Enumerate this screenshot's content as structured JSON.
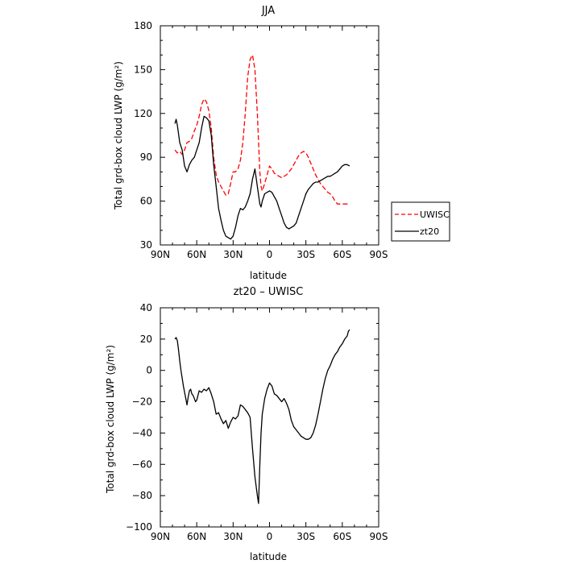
{
  "chart_data": [
    {
      "type": "line",
      "title": "JJA",
      "xlabel": "latitude",
      "ylabel": "Total grd-box cloud LWP (g/m²)",
      "xlim": [
        90,
        -90
      ],
      "ylim": [
        30,
        180
      ],
      "x_ticks": [
        90,
        60,
        30,
        0,
        -30,
        -60,
        -90
      ],
      "x_tick_labels": [
        "90N",
        "60N",
        "30N",
        "0",
        "30S",
        "60S",
        "90S"
      ],
      "y_ticks": [
        30,
        60,
        90,
        120,
        150,
        180
      ],
      "y_tick_labels": [
        "30",
        "60",
        "90",
        "120",
        "150",
        "180"
      ],
      "legend": "right",
      "series": [
        {
          "name": "UWISC",
          "color": "#ff0000",
          "dash": "dashed",
          "x": [
            78,
            76,
            74,
            72,
            70,
            68,
            66,
            64,
            62,
            60,
            58,
            56,
            54,
            52,
            50,
            48,
            46,
            44,
            42,
            40,
            38,
            36,
            34,
            32,
            30,
            28,
            26,
            24,
            22,
            20,
            18,
            16,
            14,
            12,
            10,
            8,
            7,
            6,
            4,
            2,
            0,
            -2,
            -4,
            -6,
            -8,
            -10,
            -12,
            -14,
            -16,
            -18,
            -20,
            -22,
            -24,
            -26,
            -28,
            -30,
            -32,
            -34,
            -36,
            -38,
            -40,
            -42,
            -44,
            -46,
            -48,
            -50,
            -52,
            -54,
            -56,
            -58,
            -60,
            -62,
            -64,
            -66
          ],
          "y": [
            95,
            93,
            94,
            92,
            95,
            100,
            101,
            103,
            108,
            112,
            118,
            126,
            130,
            128,
            122,
            110,
            90,
            78,
            73,
            70,
            67,
            64,
            65,
            72,
            80,
            80,
            82,
            88,
            100,
            120,
            145,
            157,
            160,
            150,
            120,
            80,
            70,
            67,
            72,
            78,
            84,
            82,
            79,
            78,
            77,
            76,
            77,
            78,
            80,
            82,
            85,
            88,
            91,
            93,
            94,
            93,
            90,
            86,
            82,
            78,
            75,
            72,
            70,
            68,
            66,
            65,
            63,
            60,
            58,
            58,
            58,
            58,
            58,
            58
          ]
        },
        {
          "name": "zt20",
          "color": "#000000",
          "dash": "solid",
          "x": [
            78,
            77,
            76,
            74,
            72,
            70,
            68,
            66,
            64,
            62,
            60,
            58,
            56,
            54,
            52,
            50,
            48,
            46,
            44,
            42,
            40,
            38,
            36,
            34,
            32,
            30,
            28,
            26,
            24,
            22,
            20,
            18,
            16,
            14,
            12,
            10,
            8,
            7,
            6,
            4,
            2,
            0,
            -2,
            -4,
            -6,
            -8,
            -10,
            -12,
            -14,
            -16,
            -18,
            -20,
            -22,
            -24,
            -26,
            -28,
            -30,
            -32,
            -34,
            -36,
            -38,
            -40,
            -42,
            -44,
            -46,
            -48,
            -50,
            -52,
            -54,
            -56,
            -58,
            -60,
            -62,
            -64,
            -66
          ],
          "y": [
            113,
            116,
            112,
            100,
            95,
            84,
            80,
            85,
            88,
            90,
            95,
            100,
            110,
            118,
            117,
            115,
            105,
            85,
            70,
            55,
            47,
            40,
            36,
            35,
            34,
            36,
            42,
            50,
            55,
            54,
            56,
            60,
            65,
            75,
            82,
            70,
            58,
            56,
            60,
            65,
            66,
            67,
            66,
            63,
            60,
            55,
            50,
            45,
            42,
            41,
            42,
            43,
            45,
            50,
            55,
            60,
            65,
            68,
            70,
            72,
            73,
            73,
            74,
            75,
            76,
            77,
            77,
            78,
            79,
            80,
            82,
            84,
            85,
            85,
            84
          ]
        }
      ]
    },
    {
      "type": "line",
      "title": "zt20 – UWISC",
      "xlabel": "latitude",
      "ylabel": "Total grd-box cloud LWP (g/m²)",
      "xlim": [
        90,
        -90
      ],
      "ylim": [
        -100,
        40
      ],
      "x_ticks": [
        90,
        60,
        30,
        0,
        -30,
        -60,
        -90
      ],
      "x_tick_labels": [
        "90N",
        "60N",
        "30N",
        "0",
        "30S",
        "60S",
        "90S"
      ],
      "y_ticks": [
        -100,
        -80,
        -60,
        -40,
        -20,
        0,
        20,
        40
      ],
      "y_tick_labels": [
        "−100",
        "−80",
        "−60",
        "−40",
        "−20",
        "0",
        "20",
        "40"
      ],
      "series": [
        {
          "color": "#000000",
          "dash": "solid",
          "x": [
            78,
            77,
            76,
            75,
            74,
            73,
            72,
            71,
            70,
            69,
            68,
            67,
            66,
            65,
            64,
            63,
            62,
            61,
            60,
            58,
            56,
            54,
            52,
            50,
            48,
            46,
            44,
            42,
            40,
            38,
            36,
            34,
            32,
            30,
            28,
            26,
            24,
            22,
            20,
            18,
            16,
            14,
            12,
            10,
            9,
            8,
            7,
            6,
            4,
            2,
            0,
            -2,
            -4,
            -6,
            -8,
            -10,
            -12,
            -14,
            -16,
            -18,
            -20,
            -22,
            -24,
            -26,
            -28,
            -30,
            -32,
            -34,
            -36,
            -38,
            -40,
            -42,
            -44,
            -46,
            -48,
            -50,
            -52,
            -54,
            -56,
            -58,
            -60,
            -62,
            -64,
            -65,
            -66
          ],
          "y": [
            20,
            21,
            19,
            13,
            6,
            0,
            -5,
            -10,
            -14,
            -18,
            -22,
            -17,
            -13,
            -12,
            -15,
            -16,
            -18,
            -20,
            -19,
            -13,
            -14,
            -12,
            -13,
            -11,
            -15,
            -20,
            -28,
            -27,
            -31,
            -34,
            -32,
            -37,
            -33,
            -30,
            -31,
            -29,
            -22,
            -23,
            -25,
            -27,
            -30,
            -50,
            -68,
            -80,
            -85,
            -60,
            -40,
            -28,
            -18,
            -12,
            -8,
            -10,
            -15,
            -16,
            -18,
            -20,
            -18,
            -21,
            -25,
            -32,
            -36,
            -38,
            -40,
            -42,
            -43,
            -44,
            -44,
            -43,
            -40,
            -35,
            -28,
            -20,
            -12,
            -5,
            0,
            3,
            7,
            10,
            12,
            15,
            17,
            20,
            22,
            25,
            26
          ]
        }
      ]
    }
  ]
}
